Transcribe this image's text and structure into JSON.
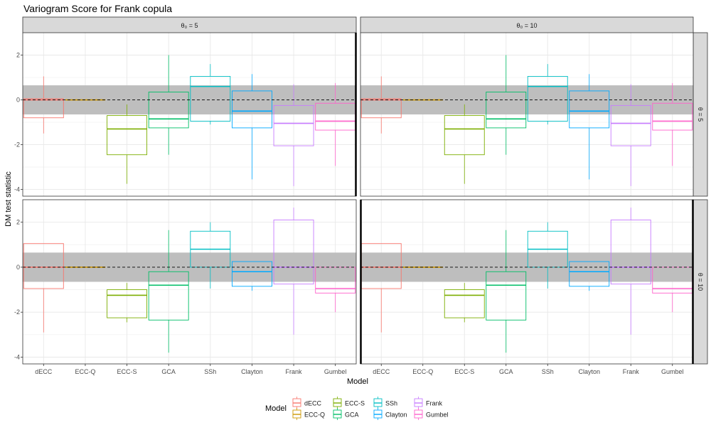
{
  "chart_data": {
    "type": "box",
    "title": "Variogram Score for Frank copula",
    "xlabel": "Model",
    "ylabel": "DM test statistic",
    "categories": [
      "dECC",
      "ECC-Q",
      "ECC-S",
      "GCA",
      "SSh",
      "Clayton",
      "Frank",
      "Gumbel"
    ],
    "ylim": [
      -4.3,
      3.0
    ],
    "yticks": [
      -4,
      -2,
      0,
      2
    ],
    "grid": true,
    "reference_band": [
      -0.65,
      0.65
    ],
    "reference_line": 0,
    "colors": {
      "dECC": "#F8766D",
      "ECC-Q": "#CD9600",
      "ECC-S": "#7CAE00",
      "GCA": "#00BE67",
      "SSh": "#00BFC4",
      "Clayton": "#00A9FF",
      "Frank": "#C77CFF",
      "Gumbel": "#FF61CC"
    },
    "col_strips": [
      "θ₀ = 5",
      "θ₀ = 10"
    ],
    "row_strips": [
      "θ = 5",
      "θ = 10"
    ],
    "legend": {
      "title": "Model",
      "position": "bottom",
      "entries": [
        "dECC",
        "ECC-Q",
        "ECC-S",
        "GCA",
        "SSh",
        "Clayton",
        "Frank",
        "Gumbel"
      ]
    },
    "panels": [
      {
        "row": "θ = 5",
        "col": "θ₀ = 5",
        "boxes": [
          {
            "category": "dECC",
            "min": -1.5,
            "q1": -0.8,
            "median": 0.0,
            "q3": 0.05,
            "max": 1.05
          },
          {
            "category": "ECC-Q",
            "min": 0.0,
            "q1": 0.0,
            "median": 0.0,
            "q3": 0.0,
            "max": 0.0
          },
          {
            "category": "ECC-S",
            "min": -3.75,
            "q1": -2.45,
            "median": -1.3,
            "q3": -0.7,
            "max": -0.2
          },
          {
            "category": "GCA",
            "min": -2.45,
            "q1": -1.25,
            "median": -0.85,
            "q3": 0.35,
            "max": 2.0
          },
          {
            "category": "SSh",
            "min": -1.1,
            "q1": -0.95,
            "median": 0.6,
            "q3": 1.05,
            "max": 1.6
          },
          {
            "category": "Clayton",
            "min": -3.55,
            "q1": -1.25,
            "median": -0.5,
            "q3": 0.4,
            "max": 1.15
          },
          {
            "category": "Frank",
            "min": -3.85,
            "q1": -2.05,
            "median": -1.05,
            "q3": -0.25,
            "max": 0.7
          },
          {
            "category": "Gumbel",
            "min": -2.95,
            "q1": -1.35,
            "median": -0.95,
            "q3": -0.15,
            "max": 0.75
          }
        ]
      },
      {
        "row": "θ = 5",
        "col": "θ₀ = 10",
        "boxes": [
          {
            "category": "dECC",
            "min": -1.5,
            "q1": -0.8,
            "median": 0.0,
            "q3": 0.05,
            "max": 1.05
          },
          {
            "category": "ECC-Q",
            "min": 0.0,
            "q1": 0.0,
            "median": 0.0,
            "q3": 0.0,
            "max": 0.0
          },
          {
            "category": "ECC-S",
            "min": -3.75,
            "q1": -2.45,
            "median": -1.3,
            "q3": -0.7,
            "max": -0.2
          },
          {
            "category": "GCA",
            "min": -2.45,
            "q1": -1.25,
            "median": -0.85,
            "q3": 0.35,
            "max": 2.0
          },
          {
            "category": "SSh",
            "min": -1.1,
            "q1": -0.95,
            "median": 0.6,
            "q3": 1.05,
            "max": 1.6
          },
          {
            "category": "Clayton",
            "min": -3.55,
            "q1": -1.25,
            "median": -0.5,
            "q3": 0.4,
            "max": 1.15
          },
          {
            "category": "Frank",
            "min": -3.85,
            "q1": -2.05,
            "median": -1.05,
            "q3": -0.25,
            "max": 0.7
          },
          {
            "category": "Gumbel",
            "min": -2.95,
            "q1": -1.35,
            "median": -0.95,
            "q3": -0.15,
            "max": 0.75
          }
        ]
      },
      {
        "row": "θ = 10",
        "col": "θ₀ = 5",
        "boxes": [
          {
            "category": "dECC",
            "min": -2.9,
            "q1": -0.95,
            "median": 0.0,
            "q3": 1.05,
            "max": 1.05
          },
          {
            "category": "ECC-Q",
            "min": 0.0,
            "q1": 0.0,
            "median": 0.0,
            "q3": 0.0,
            "max": 0.0
          },
          {
            "category": "ECC-S",
            "min": -2.45,
            "q1": -2.25,
            "median": -1.25,
            "q3": -1.0,
            "max": -0.7
          },
          {
            "category": "GCA",
            "min": -3.8,
            "q1": -2.35,
            "median": -0.8,
            "q3": -0.2,
            "max": 1.65
          },
          {
            "category": "SSh",
            "min": -0.95,
            "q1": 0.0,
            "median": 0.8,
            "q3": 1.6,
            "max": 2.0
          },
          {
            "category": "Clayton",
            "min": -1.05,
            "q1": -0.85,
            "median": -0.2,
            "q3": 0.25,
            "max": 0.25
          },
          {
            "category": "Frank",
            "min": -3.0,
            "q1": -0.75,
            "median": 0.0,
            "q3": 2.1,
            "max": 2.65
          },
          {
            "category": "Gumbel",
            "min": -2.0,
            "q1": -1.15,
            "median": -0.95,
            "q3": 0.0,
            "max": 0.0
          }
        ]
      },
      {
        "row": "θ = 10",
        "col": "θ₀ = 10",
        "boxes": [
          {
            "category": "dECC",
            "min": -2.9,
            "q1": -0.95,
            "median": 0.0,
            "q3": 1.05,
            "max": 1.05
          },
          {
            "category": "ECC-Q",
            "min": 0.0,
            "q1": 0.0,
            "median": 0.0,
            "q3": 0.0,
            "max": 0.0
          },
          {
            "category": "ECC-S",
            "min": -2.45,
            "q1": -2.25,
            "median": -1.25,
            "q3": -1.0,
            "max": -0.7
          },
          {
            "category": "GCA",
            "min": -3.8,
            "q1": -2.35,
            "median": -0.8,
            "q3": -0.2,
            "max": 1.65
          },
          {
            "category": "SSh",
            "min": -0.95,
            "q1": 0.0,
            "median": 0.8,
            "q3": 1.6,
            "max": 2.0
          },
          {
            "category": "Clayton",
            "min": -1.05,
            "q1": -0.85,
            "median": -0.2,
            "q3": 0.25,
            "max": 0.25
          },
          {
            "category": "Frank",
            "min": -3.0,
            "q1": -0.75,
            "median": 0.0,
            "q3": 2.1,
            "max": 2.65
          },
          {
            "category": "Gumbel",
            "min": -2.0,
            "q1": -1.15,
            "median": -0.95,
            "q3": 0.0,
            "max": 0.0
          }
        ]
      }
    ]
  }
}
